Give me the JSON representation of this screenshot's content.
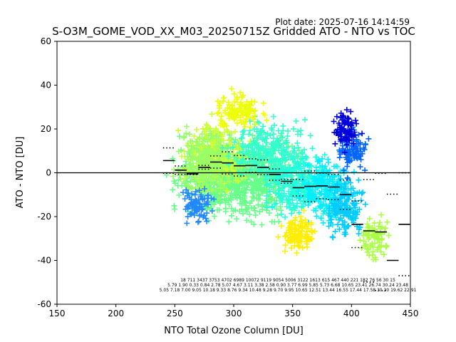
{
  "figure": {
    "plot_date": "Plot date: 2025-07-16 14:14:59",
    "title": "S-O3M_GOME_VOD_XX_M03_20250715Z Gridded ATO - NTO vs TOC"
  },
  "chart_data": {
    "type": "scatter",
    "title": "S-O3M_GOME_VOD_XX_M03_20250715Z Gridded ATO - NTO vs TOC",
    "xlabel": "NTO Total Ozone Column [DU]",
    "ylabel": "ATO - NTO [DU]",
    "xlim": [
      150,
      450
    ],
    "ylim": [
      -60,
      60
    ],
    "xticks": [
      150,
      200,
      250,
      300,
      350,
      400,
      450
    ],
    "yticks": [
      -60,
      -40,
      -20,
      0,
      20,
      40,
      60
    ],
    "grid": false,
    "legend": "none",
    "marker": "+",
    "zero_line": 0,
    "scatter_clusters": [
      {
        "x": 305,
        "y": -2,
        "count": 900,
        "spread": [
          45,
          16
        ],
        "color": "#66ff88"
      },
      {
        "x": 285,
        "y": 8,
        "count": 260,
        "spread": [
          25,
          14
        ],
        "color": "#ccff33"
      },
      {
        "x": 275,
        "y": 5,
        "count": 220,
        "spread": [
          20,
          14
        ],
        "color": "#99ff66"
      },
      {
        "x": 330,
        "y": 10,
        "count": 260,
        "spread": [
          30,
          13
        ],
        "color": "#33ffcc"
      },
      {
        "x": 355,
        "y": -5,
        "count": 300,
        "spread": [
          25,
          13
        ],
        "color": "#22ffdd"
      },
      {
        "x": 380,
        "y": -8,
        "count": 220,
        "spread": [
          20,
          14
        ],
        "color": "#00eeff"
      },
      {
        "x": 395,
        "y": -15,
        "count": 150,
        "spread": [
          14,
          12
        ],
        "color": "#00ccff"
      },
      {
        "x": 400,
        "y": 10,
        "count": 90,
        "spread": [
          12,
          10
        ],
        "color": "#0066ff"
      },
      {
        "x": 395,
        "y": 20,
        "count": 80,
        "spread": [
          10,
          8
        ],
        "color": "#0000dd"
      },
      {
        "x": 420,
        "y": -30,
        "count": 80,
        "spread": [
          12,
          10
        ],
        "color": "#aaff44"
      },
      {
        "x": 355,
        "y": -28,
        "count": 120,
        "spread": [
          14,
          8
        ],
        "color": "#ffee00"
      },
      {
        "x": 305,
        "y": 28,
        "count": 120,
        "spread": [
          20,
          8
        ],
        "color": "#eeff00"
      },
      {
        "x": 270,
        "y": -15,
        "count": 80,
        "spread": [
          12,
          8
        ],
        "color": "#2288ff"
      }
    ],
    "bins": [
      {
        "x": 245,
        "mean": 5.57,
        "std": 5.79,
        "median": 5.05
      },
      {
        "x": 255,
        "mean": 1.2,
        "std": 1.9,
        "median": 7.18
      },
      {
        "x": 265,
        "mean": -0.5,
        "std": 0.33,
        "median": 7.0
      },
      {
        "x": 275,
        "mean": 2.5,
        "std": 0.84,
        "median": 9.05
      },
      {
        "x": 285,
        "mean": 4.9,
        "std": 2.78,
        "median": 10.18
      },
      {
        "x": 295,
        "mean": 4.5,
        "std": 5.07,
        "median": 9.33
      },
      {
        "x": 305,
        "mean": 3.2,
        "std": 4.67,
        "median": 8.76
      },
      {
        "x": 315,
        "mean": 3.3,
        "std": 3.11,
        "median": 9.34
      },
      {
        "x": 325,
        "mean": 2.5,
        "std": 3.38,
        "median": 10.48
      },
      {
        "x": 335,
        "mean": -0.8,
        "std": 2.58,
        "median": 9.28
      },
      {
        "x": 345,
        "mean": -3.9,
        "std": 0.9,
        "median": 9.7
      },
      {
        "x": 355,
        "mean": -6.8,
        "std": 3.77,
        "median": 9.95
      },
      {
        "x": 365,
        "mean": -6.2,
        "std": 6.99,
        "median": 10.65
      },
      {
        "x": 375,
        "mean": -6,
        "std": 5.85,
        "median": 12.51
      },
      {
        "x": 385,
        "mean": -6.5,
        "std": 5.73,
        "median": 13.44
      },
      {
        "x": 395,
        "mean": -10,
        "std": 6.68,
        "median": 16.55
      },
      {
        "x": 405,
        "mean": -23.5,
        "std": 10.65,
        "median": 17.44
      },
      {
        "x": 415,
        "mean": -26.5,
        "std": 23.41,
        "median": 17.58
      },
      {
        "x": 425,
        "mean": -27,
        "std": 26.74,
        "median": 30.3
      },
      {
        "x": 435,
        "mean": -40,
        "std": 30.24,
        "median": 19.62
      },
      {
        "x": 445,
        "mean": -23.5,
        "std": 23.48,
        "median": 22.91
      }
    ],
    "annotations": {
      "row1": "18 711 3437 3753 4702 6989 10072 9119 9054 5006 3122 1613 615 467 440 221 182 76 56 30 15",
      "row2": "5.79 1.90 0.33 0.84 2.78 5.07 4.67 3.11 3.38 2.58 0.90 3.77 6.99 5.85 5.73 6.68 10.65 23.41 26.74 30.24 23.48",
      "row3": "5.05 7.18 7.00 9.05 10.18 9.33 8.76 9.34 10.48 9.28 9.70 9.95 10.65 12.51 13.44 16.55 17.44 17.58 30.30 19.62 22.91"
    }
  }
}
